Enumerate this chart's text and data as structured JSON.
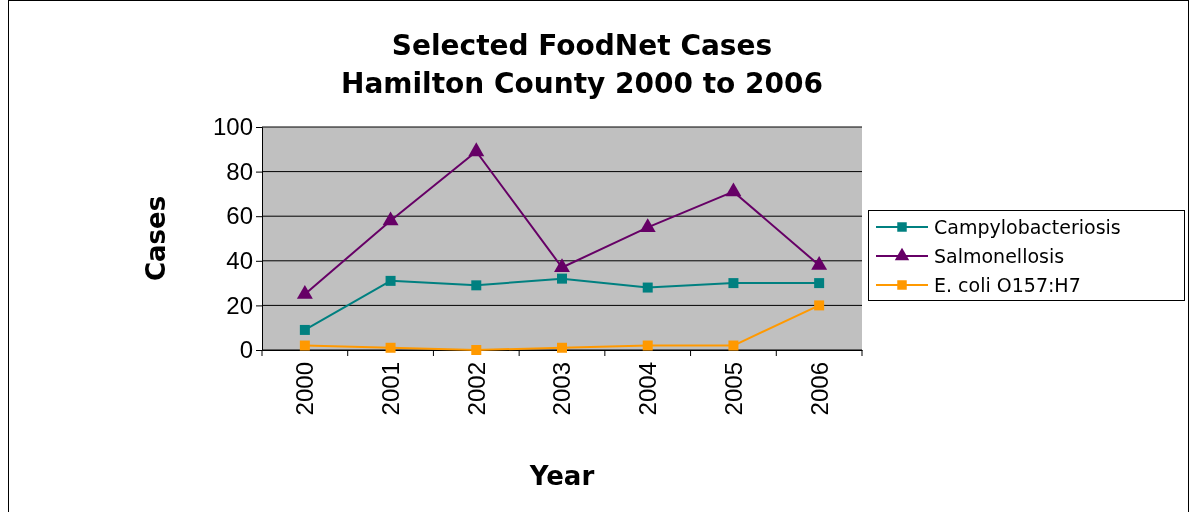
{
  "chart_data": {
    "type": "line",
    "title": "Selected FoodNet Cases\nHamilton County 2000 to 2006",
    "xlabel": "Year",
    "ylabel": "Cases",
    "categories": [
      "2000",
      "2001",
      "2002",
      "2003",
      "2004",
      "2005",
      "2006"
    ],
    "series": [
      {
        "name": "Campylobacteriosis",
        "color": "#008080",
        "marker": "square",
        "values": [
          9,
          31,
          29,
          32,
          28,
          30,
          30
        ]
      },
      {
        "name": "Salmonellosis",
        "color": "#660066",
        "marker": "triangle",
        "values": [
          25,
          58,
          89,
          37,
          55,
          71,
          38
        ]
      },
      {
        "name": "E. coli O157:H7",
        "color": "#ff9900",
        "marker": "square",
        "values": [
          2,
          1,
          0,
          1,
          2,
          2,
          20
        ]
      }
    ],
    "ylim": [
      0,
      100
    ],
    "yticks": [
      0,
      20,
      40,
      60,
      80,
      100
    ],
    "grid": "y",
    "legend": "right"
  }
}
